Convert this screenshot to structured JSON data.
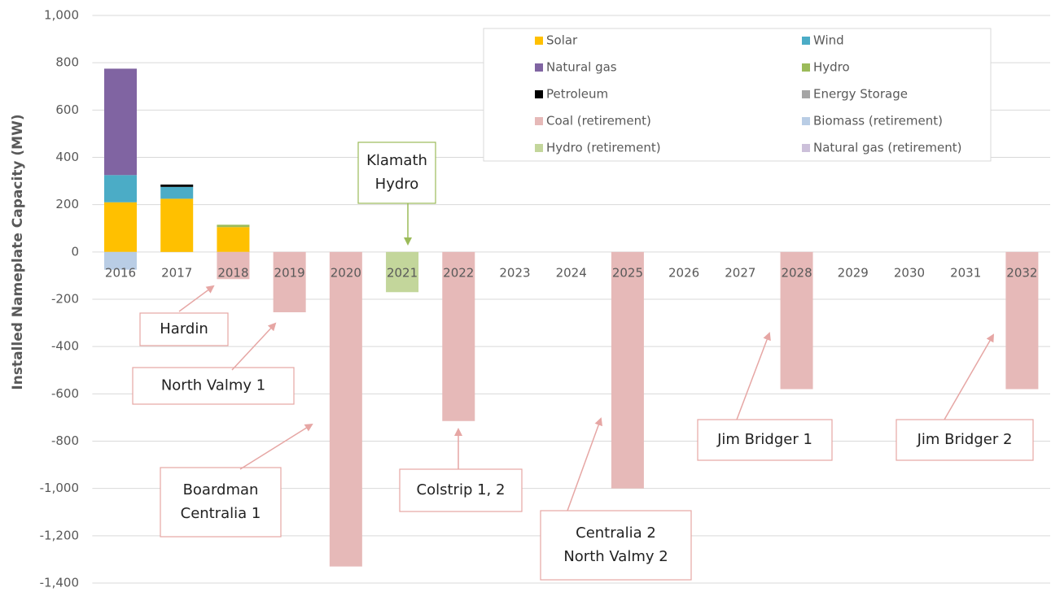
{
  "chart_data": {
    "type": "stacked_bar",
    "y_label": "Installed Nameplate Capacity (MW)",
    "categories": [
      "2016",
      "2017",
      "2018",
      "2019",
      "2020",
      "2021",
      "2022",
      "2023",
      "2024",
      "2025",
      "2026",
      "2027",
      "2028",
      "2029",
      "2030",
      "2031",
      "2032"
    ],
    "series": [
      {
        "name": "Solar",
        "color": "#ffc000",
        "values": [
          210,
          225,
          105,
          null,
          null,
          null,
          null,
          null,
          null,
          null,
          null,
          null,
          null,
          null,
          null,
          null,
          null
        ]
      },
      {
        "name": "Wind",
        "color": "#4bacc6",
        "values": [
          115,
          50,
          null,
          null,
          null,
          null,
          null,
          null,
          null,
          null,
          null,
          null,
          null,
          null,
          null,
          null,
          null
        ]
      },
      {
        "name": "Natural gas",
        "color": "#8064a2",
        "values": [
          450,
          null,
          null,
          null,
          null,
          null,
          null,
          null,
          null,
          null,
          null,
          null,
          null,
          null,
          null,
          null,
          null
        ]
      },
      {
        "name": "Hydro",
        "color": "#9bbb59",
        "values": [
          null,
          null,
          10,
          null,
          null,
          null,
          null,
          null,
          null,
          null,
          null,
          null,
          null,
          null,
          null,
          null,
          null
        ]
      },
      {
        "name": "Petroleum",
        "color": "#000000",
        "values": [
          null,
          10,
          null,
          null,
          null,
          null,
          null,
          null,
          null,
          null,
          null,
          null,
          null,
          null,
          null,
          null,
          null
        ]
      },
      {
        "name": "Energy Storage",
        "color": "#a5a5a5",
        "values": [
          null,
          null,
          null,
          null,
          null,
          null,
          null,
          null,
          null,
          null,
          null,
          null,
          null,
          null,
          null,
          null,
          null
        ]
      },
      {
        "name": "Coal (retirement)",
        "color": "#e6b9b8",
        "values": [
          null,
          null,
          -115,
          -255,
          -1330,
          null,
          -715,
          null,
          null,
          -1000,
          null,
          null,
          -580,
          null,
          null,
          null,
          -580
        ]
      },
      {
        "name": "Biomass (retirement)",
        "color": "#b9cde5",
        "values": [
          -75,
          null,
          null,
          null,
          null,
          null,
          null,
          null,
          null,
          null,
          null,
          null,
          null,
          null,
          null,
          null,
          null
        ]
      },
      {
        "name": "Hydro (retirement)",
        "color": "#c3d69b",
        "values": [
          null,
          null,
          null,
          null,
          null,
          -170,
          null,
          null,
          null,
          null,
          null,
          null,
          null,
          null,
          null,
          null,
          null
        ]
      },
      {
        "name": "Natural gas (retirement)",
        "color": "#ccc0da",
        "values": [
          null,
          null,
          null,
          null,
          null,
          null,
          null,
          null,
          null,
          null,
          null,
          null,
          null,
          null,
          null,
          null,
          null
        ]
      }
    ],
    "ylim": [
      -1400,
      1000
    ],
    "yticks": [
      {
        "value": 1000,
        "label": "1,000"
      },
      800,
      600,
      400,
      200,
      0,
      -200,
      -400,
      -600,
      -800,
      {
        "value": -1000,
        "label": "-1,000"
      },
      {
        "value": -1200,
        "label": "-1,200"
      },
      {
        "value": -1400,
        "label": "-1,400"
      }
    ],
    "grid": true,
    "annotations": [
      [
        "Klamath",
        "Hydro"
      ],
      [
        "Hardin"
      ],
      [
        "North Valmy 1"
      ],
      [
        "Boardman",
        "Centralia 1"
      ],
      [
        "Colstrip 1, 2"
      ],
      [
        "Centralia 2",
        "North Valmy 2"
      ],
      [
        "Jim Bridger 1"
      ],
      [
        "Jim Bridger 2"
      ]
    ]
  }
}
